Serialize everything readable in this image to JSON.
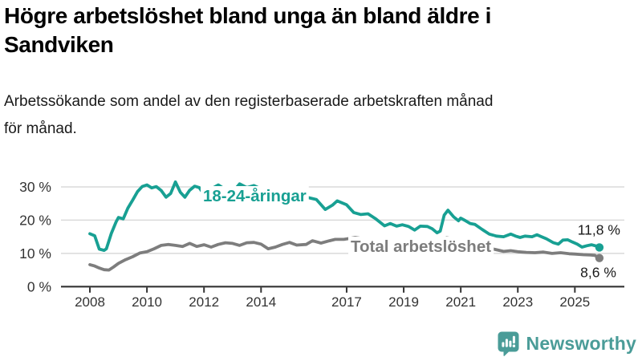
{
  "header": {
    "title": "Högre arbetslöshet bland unga än bland äldre i\nSandviken",
    "subtitle": "Arbetssökande som andel av den registerbaserade arbetskraften månad\nför månad."
  },
  "chart_data": {
    "type": "line",
    "title": "Högre arbetslöshet bland unga än bland äldre i Sandviken",
    "subtitle": "Arbetssökande som andel av den registerbaserade arbetskraften månad för månad.",
    "unit": "%",
    "grid": true,
    "legend": "inline-labels",
    "x_axis": {
      "range": [
        2008,
        2025.95
      ],
      "ticks": [
        2008,
        2010,
        2012,
        2014,
        2017,
        2019,
        2021,
        2023,
        2025
      ]
    },
    "y_axis": {
      "range": [
        0,
        33
      ],
      "ticks": [
        {
          "value": 0,
          "label": "0 %"
        },
        {
          "value": 10,
          "label": "10 %"
        },
        {
          "value": 20,
          "label": "20 %"
        },
        {
          "value": 30,
          "label": "30 %"
        }
      ]
    },
    "series": [
      {
        "name": "18-24-åringar",
        "color": "#18a093",
        "end_value": 11.8,
        "end_value_label": "11,8 %",
        "points": [
          [
            2008.0,
            15.9
          ],
          [
            2008.17,
            15.3
          ],
          [
            2008.33,
            11.3
          ],
          [
            2008.5,
            10.9
          ],
          [
            2008.58,
            11.4
          ],
          [
            2008.75,
            16.0
          ],
          [
            2008.92,
            19.5
          ],
          [
            2009.0,
            20.8
          ],
          [
            2009.17,
            20.4
          ],
          [
            2009.33,
            23.6
          ],
          [
            2009.5,
            26.0
          ],
          [
            2009.67,
            28.6
          ],
          [
            2009.83,
            30.1
          ],
          [
            2010.0,
            30.6
          ],
          [
            2010.17,
            29.7
          ],
          [
            2010.33,
            30.1
          ],
          [
            2010.5,
            28.9
          ],
          [
            2010.67,
            26.9
          ],
          [
            2010.83,
            28.0
          ],
          [
            2011.0,
            31.5
          ],
          [
            2011.17,
            28.4
          ],
          [
            2011.33,
            26.9
          ],
          [
            2011.5,
            29.0
          ],
          [
            2011.67,
            30.2
          ],
          [
            2011.83,
            29.8
          ],
          [
            2012.0,
            27.8
          ],
          [
            2012.25,
            29.4
          ],
          [
            2012.5,
            30.6
          ],
          [
            2012.75,
            29.2
          ],
          [
            2013.0,
            28.4
          ],
          [
            2013.25,
            30.9
          ],
          [
            2013.5,
            29.8
          ],
          [
            2013.75,
            30.4
          ],
          [
            2014.0,
            29.4
          ],
          [
            2014.25,
            28.6
          ],
          [
            2014.5,
            29.1
          ],
          [
            2014.75,
            28.2
          ],
          [
            2015.0,
            28.4
          ],
          [
            2015.25,
            27.6
          ],
          [
            2015.5,
            27.1
          ],
          [
            2015.75,
            26.6
          ],
          [
            2015.94,
            26.2
          ],
          [
            2016.25,
            23.2
          ],
          [
            2016.5,
            24.5
          ],
          [
            2016.67,
            25.8
          ],
          [
            2017.0,
            24.6
          ],
          [
            2017.25,
            22.3
          ],
          [
            2017.5,
            21.7
          ],
          [
            2017.75,
            21.9
          ],
          [
            2018.0,
            20.5
          ],
          [
            2018.33,
            18.3
          ],
          [
            2018.53,
            19.0
          ],
          [
            2018.75,
            18.2
          ],
          [
            2018.95,
            18.6
          ],
          [
            2019.17,
            18.1
          ],
          [
            2019.38,
            17.0
          ],
          [
            2019.58,
            18.2
          ],
          [
            2019.83,
            18.1
          ],
          [
            2020.0,
            17.4
          ],
          [
            2020.17,
            16.2
          ],
          [
            2020.28,
            16.7
          ],
          [
            2020.42,
            21.5
          ],
          [
            2020.55,
            23.0
          ],
          [
            2020.75,
            21.0
          ],
          [
            2020.92,
            19.8
          ],
          [
            2021.0,
            20.6
          ],
          [
            2021.17,
            19.8
          ],
          [
            2021.33,
            19.0
          ],
          [
            2021.5,
            18.7
          ],
          [
            2021.75,
            17.2
          ],
          [
            2022.0,
            15.8
          ],
          [
            2022.25,
            15.2
          ],
          [
            2022.5,
            15.0
          ],
          [
            2022.75,
            15.8
          ],
          [
            2022.92,
            15.2
          ],
          [
            2023.08,
            14.8
          ],
          [
            2023.25,
            15.2
          ],
          [
            2023.5,
            15.0
          ],
          [
            2023.67,
            15.6
          ],
          [
            2023.83,
            15.0
          ],
          [
            2024.0,
            14.4
          ],
          [
            2024.25,
            13.2
          ],
          [
            2024.42,
            12.8
          ],
          [
            2024.58,
            14.0
          ],
          [
            2024.75,
            14.1
          ],
          [
            2024.92,
            13.4
          ],
          [
            2025.08,
            12.8
          ],
          [
            2025.25,
            11.9
          ],
          [
            2025.42,
            12.3
          ],
          [
            2025.58,
            12.6
          ],
          [
            2025.75,
            12.2
          ],
          [
            2025.86,
            11.8
          ]
        ]
      },
      {
        "name": "Total arbetslöshet",
        "color": "#7d7d7d",
        "end_value": 8.6,
        "end_value_label": "8,6 %",
        "points": [
          [
            2008.0,
            6.6
          ],
          [
            2008.17,
            6.2
          ],
          [
            2008.33,
            5.6
          ],
          [
            2008.5,
            5.1
          ],
          [
            2008.67,
            5.0
          ],
          [
            2008.83,
            5.9
          ],
          [
            2009.0,
            7.0
          ],
          [
            2009.25,
            8.1
          ],
          [
            2009.5,
            9.0
          ],
          [
            2009.75,
            10.1
          ],
          [
            2010.0,
            10.5
          ],
          [
            2010.25,
            11.4
          ],
          [
            2010.5,
            12.4
          ],
          [
            2010.75,
            12.7
          ],
          [
            2011.0,
            12.4
          ],
          [
            2011.25,
            12.1
          ],
          [
            2011.5,
            13.0
          ],
          [
            2011.75,
            12.1
          ],
          [
            2012.0,
            12.6
          ],
          [
            2012.25,
            11.9
          ],
          [
            2012.5,
            12.7
          ],
          [
            2012.75,
            13.2
          ],
          [
            2013.0,
            13.0
          ],
          [
            2013.25,
            12.4
          ],
          [
            2013.5,
            13.2
          ],
          [
            2013.75,
            13.3
          ],
          [
            2014.0,
            12.8
          ],
          [
            2014.25,
            11.4
          ],
          [
            2014.5,
            11.9
          ],
          [
            2014.75,
            12.7
          ],
          [
            2015.0,
            13.3
          ],
          [
            2015.25,
            12.5
          ],
          [
            2015.58,
            12.7
          ],
          [
            2015.8,
            13.8
          ],
          [
            2016.1,
            13.1
          ],
          [
            2016.4,
            13.8
          ],
          [
            2016.6,
            14.2
          ],
          [
            2016.9,
            14.2
          ],
          [
            2017.1,
            14.5
          ],
          [
            2017.3,
            14.8
          ],
          [
            2017.6,
            14.4
          ],
          [
            2017.9,
            14.0
          ],
          [
            2018.25,
            13.5
          ],
          [
            2018.6,
            13.2
          ],
          [
            2018.9,
            13.0
          ],
          [
            2019.25,
            12.9
          ],
          [
            2019.6,
            12.9
          ],
          [
            2019.9,
            12.9
          ],
          [
            2020.2,
            13.3
          ],
          [
            2020.5,
            14.7
          ],
          [
            2020.8,
            14.3
          ],
          [
            2021.0,
            14.0
          ],
          [
            2021.3,
            13.4
          ],
          [
            2021.6,
            12.7
          ],
          [
            2021.9,
            11.9
          ],
          [
            2022.2,
            11.2
          ],
          [
            2022.5,
            10.6
          ],
          [
            2022.75,
            10.8
          ],
          [
            2023.0,
            10.5
          ],
          [
            2023.3,
            10.3
          ],
          [
            2023.6,
            10.2
          ],
          [
            2023.9,
            10.4
          ],
          [
            2024.2,
            10.0
          ],
          [
            2024.5,
            10.2
          ],
          [
            2024.8,
            9.9
          ],
          [
            2025.0,
            9.8
          ],
          [
            2025.3,
            9.6
          ],
          [
            2025.55,
            9.5
          ],
          [
            2025.7,
            9.4
          ],
          [
            2025.86,
            8.6
          ]
        ]
      }
    ]
  },
  "footer": {
    "brand": "Newsworthy"
  }
}
